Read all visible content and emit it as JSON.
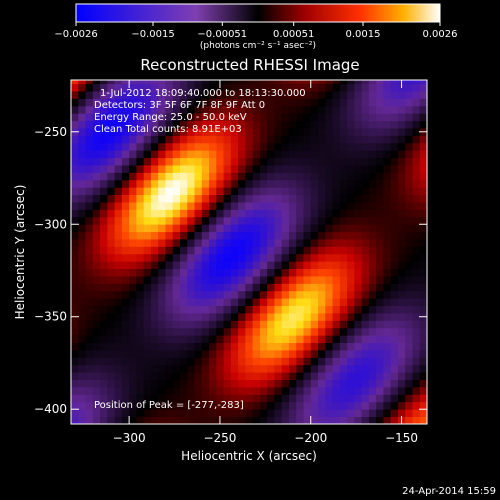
{
  "chart_data": {
    "type": "heatmap",
    "title": "Reconstructed RHESSI Image",
    "xlabel": "Heliocentric X (arcsec)",
    "ylabel": "Heliocentric Y (arcsec)",
    "xlim": [
      -332,
      -136
    ],
    "ylim": [
      -408,
      -222
    ],
    "x_ticks": [
      -300,
      -250,
      -200,
      -150
    ],
    "x_tick_labels": [
      "−300",
      "−250",
      "−200",
      "−150"
    ],
    "y_ticks": [
      -400,
      -350,
      -300,
      -250
    ],
    "y_tick_labels": [
      "−400",
      "−350",
      "−300",
      "−250"
    ],
    "colorbar": {
      "range": [
        -0.0026,
        0.0026
      ],
      "ticks": [
        -0.0026,
        -0.0015,
        -0.00051,
        0.00051,
        0.0015,
        0.0026
      ],
      "tick_labels": [
        "−0.0026",
        "−0.0015",
        "−0.00051",
        "0.00051",
        "0.0015",
        "0.0026"
      ],
      "units": "(photons cm⁻² s⁻¹ asec⁻²)"
    },
    "annotations": {
      "time": "1-Jul-2012 18:09:40.000 to 18:13:30.000",
      "detectors": "Detectors: 3F 5F 6F 7F 8F 9F  Att 0",
      "energy": "Energy Range: 25.0 - 50.0 keV",
      "method": "Clean     Total counts: 8.91E+03",
      "peak": "Position of Peak = [-277,-283]"
    },
    "peak_position": [
      -277,
      -283
    ],
    "footer_date": "24-Apr-2014 15:59",
    "grid": false
  }
}
